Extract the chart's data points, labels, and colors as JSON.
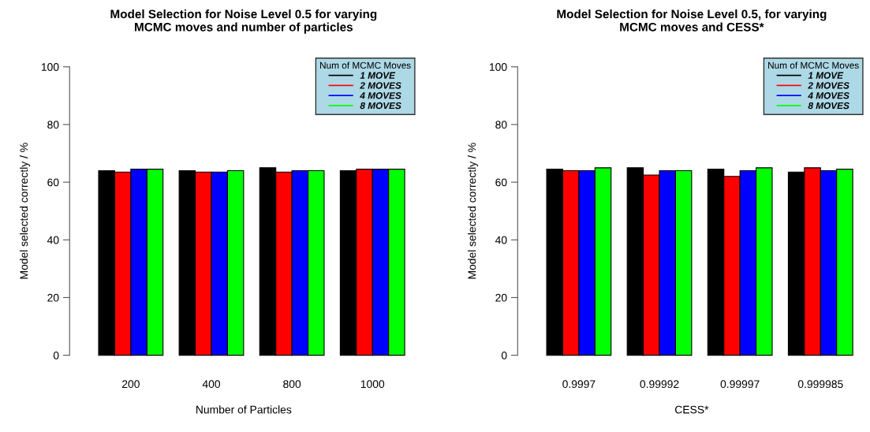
{
  "chart_data": [
    {
      "type": "bar",
      "title": "Model Selection for Noise Level 0.5 for varying\nMCMC moves and number of particles",
      "xlabel": "Number of Particles",
      "ylabel": "Model selected correctly / %",
      "legend_title": "Num of MCMC Moves",
      "legend": "top right",
      "grid": false,
      "categories": [
        "200",
        "400",
        "800",
        "1000"
      ],
      "ylim": [
        0,
        100
      ],
      "yticks": [
        0,
        20,
        40,
        60,
        80,
        100
      ],
      "series": [
        {
          "name": "1 MOVE",
          "color": "#000000",
          "values": [
            64,
            64,
            65,
            64
          ]
        },
        {
          "name": "2 MOVES",
          "color": "#ff0000",
          "values": [
            63.5,
            63.5,
            63.5,
            64.5
          ]
        },
        {
          "name": "4 MOVES",
          "color": "#0000ff",
          "values": [
            64.5,
            63.5,
            64,
            64.5
          ]
        },
        {
          "name": "8 MOVES",
          "color": "#00ff00",
          "values": [
            64.5,
            64,
            64,
            64.5
          ]
        }
      ]
    },
    {
      "type": "bar",
      "title": "Model Selection for Noise Level 0.5, for varying\nMCMC moves and CESS*",
      "xlabel": "CESS*",
      "ylabel": "Model selected correctly / %",
      "legend_title": "Num of MCMC Moves",
      "legend": "top right",
      "grid": false,
      "categories": [
        "0.9997",
        "0.99992",
        "0.99997",
        "0.999985"
      ],
      "ylim": [
        0,
        100
      ],
      "yticks": [
        0,
        20,
        40,
        60,
        80,
        100
      ],
      "series": [
        {
          "name": "1 MOVE",
          "color": "#000000",
          "values": [
            64.5,
            65,
            64.5,
            63.5
          ]
        },
        {
          "name": "2 MOVES",
          "color": "#ff0000",
          "values": [
            64,
            62.5,
            62,
            65
          ]
        },
        {
          "name": "4 MOVES",
          "color": "#0000ff",
          "values": [
            64,
            64,
            64,
            64
          ]
        },
        {
          "name": "8 MOVES",
          "color": "#00ff00",
          "values": [
            65,
            64,
            65,
            64.5
          ]
        }
      ]
    }
  ]
}
